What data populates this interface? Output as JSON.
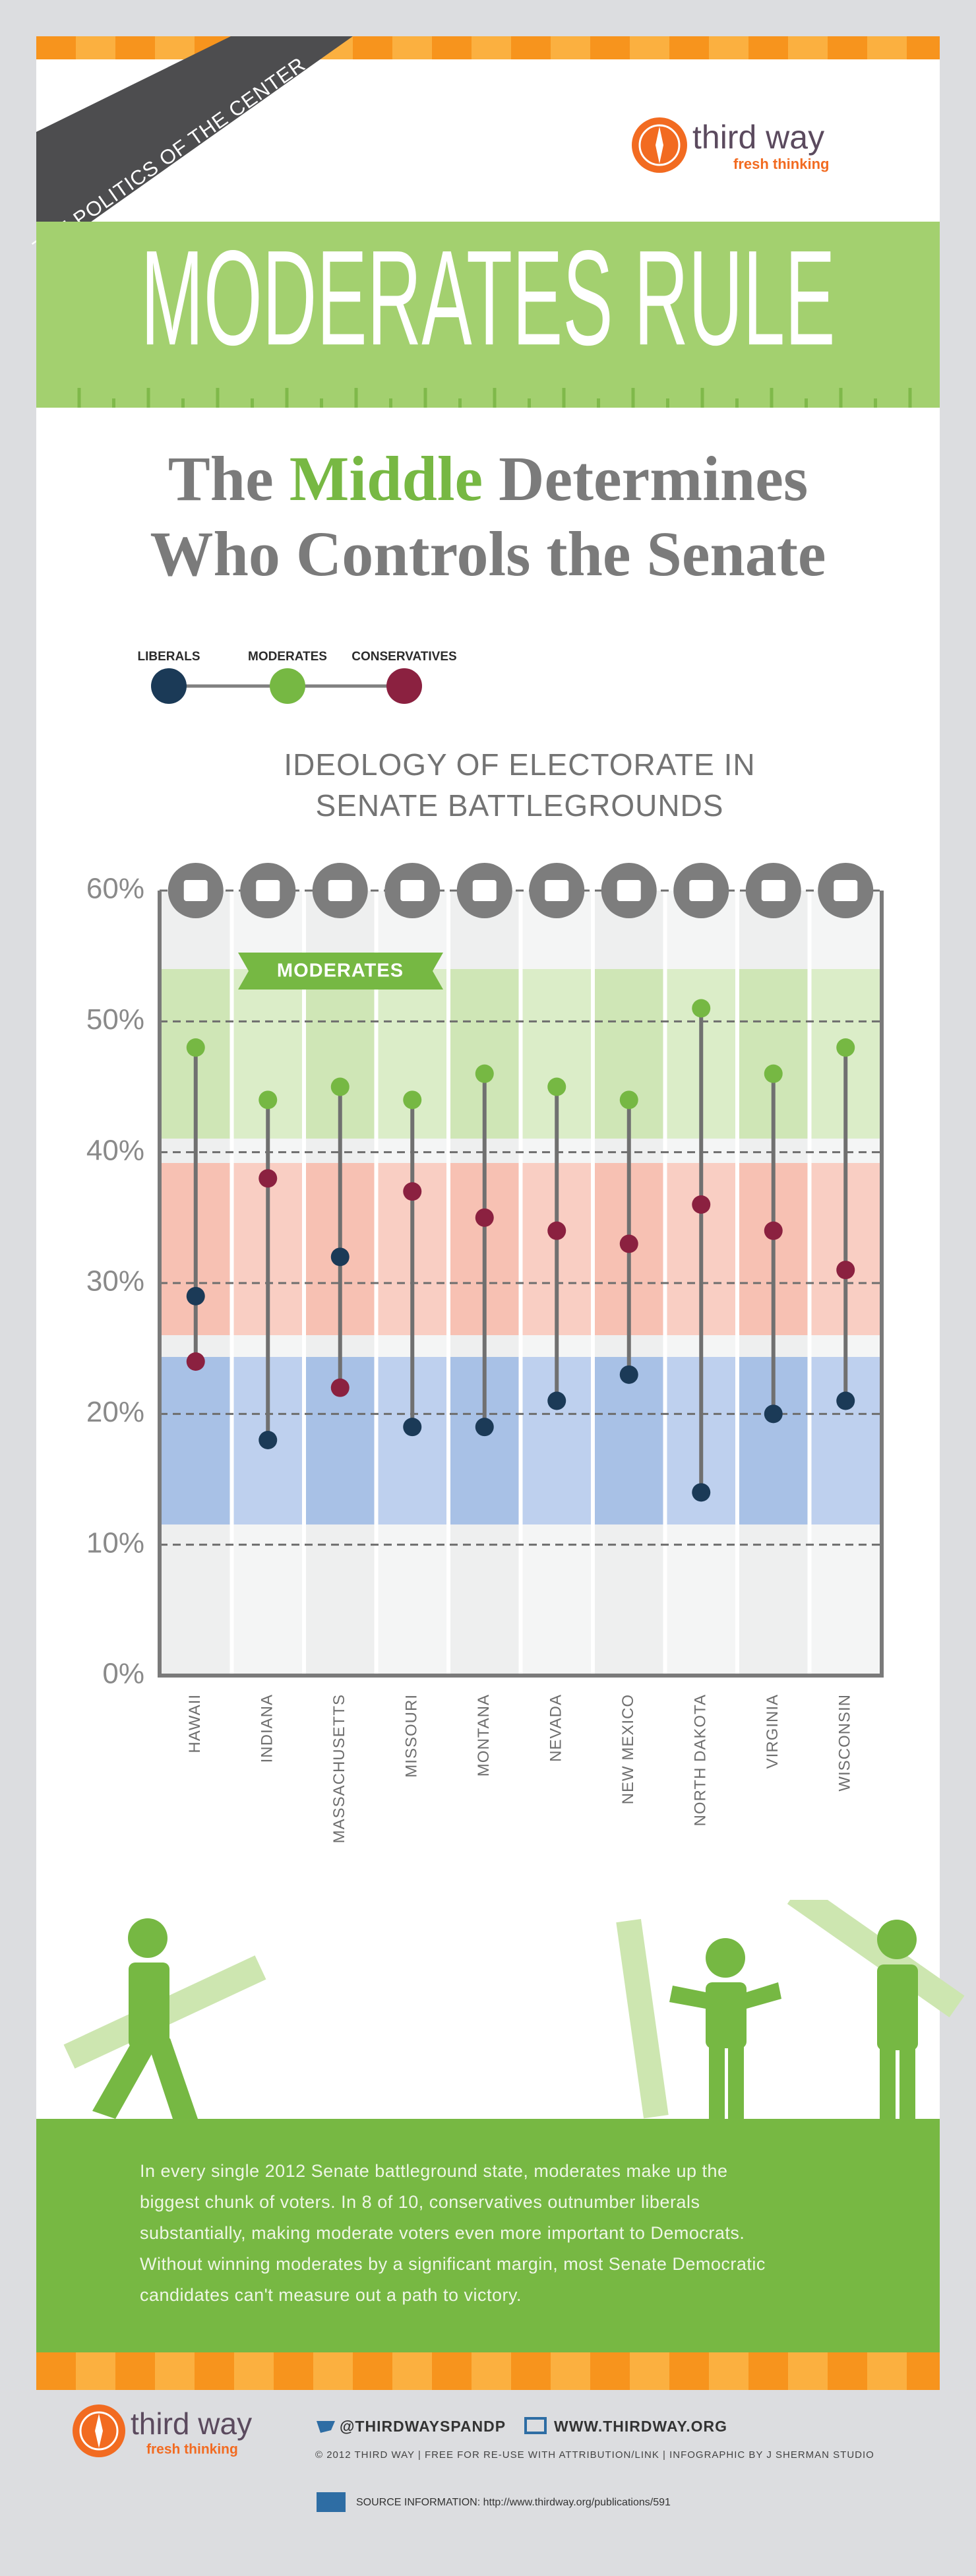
{
  "header": {
    "ribbon": "THE POLITICS OF THE CENTER",
    "logo": {
      "name": "third way",
      "tagline": "fresh thinking"
    },
    "title": "MODERATES RULE",
    "subtitle": {
      "line1_before": "The",
      "line1_highlight": "Middle",
      "line1_after": "Determines",
      "line2": "Who Controls the Senate"
    }
  },
  "chart_data": {
    "type": "dumbbell",
    "title_lines": [
      "IDEOLOGY OF ELECTORATE IN",
      "SENATE BATTLEGROUNDS"
    ],
    "band_label": "MODERATES",
    "categories": [
      "HAWAII",
      "INDIANA",
      "MASSACHUSETTS",
      "MISSOURI",
      "MONTANA",
      "NEVADA",
      "NEW MEXICO",
      "NORTH DAKOTA",
      "VIRGINIA",
      "WISCONSIN"
    ],
    "series": [
      {
        "name": "LIBERALS",
        "color": "#1b3a57",
        "values": [
          29,
          18,
          32,
          19,
          19,
          21,
          23,
          14,
          20,
          21
        ]
      },
      {
        "name": "MODERATES",
        "color": "#76b843",
        "values": [
          48,
          44,
          45,
          44,
          46,
          45,
          44,
          51,
          46,
          48
        ]
      },
      {
        "name": "CONSERVATIVES",
        "color": "#8b2140",
        "values": [
          24,
          38,
          22,
          37,
          35,
          34,
          33,
          36,
          34,
          31
        ]
      }
    ],
    "ylim": [
      0,
      60
    ],
    "yticks": [
      {
        "value": 0,
        "label": "0%"
      },
      {
        "value": 10,
        "label": "10%"
      },
      {
        "value": 20,
        "label": "20%"
      },
      {
        "value": 30,
        "label": "30%"
      },
      {
        "value": 40,
        "label": "40%"
      },
      {
        "value": 50,
        "label": "50%"
      },
      {
        "value": 60,
        "label": "60%"
      }
    ],
    "grid": true
  },
  "body": {
    "lines": [
      "In every single 2012 Senate battleground state, moderates make up the",
      "biggest chunk of voters. In 8 of 10, conservatives outnumber liberals",
      "substantially, making moderate voters even more important to Democrats.",
      "Without winning moderates by a significant margin, most Senate Democratic",
      "candidates can't measure out a path to victory."
    ]
  },
  "footer": {
    "logo": {
      "name": "third way",
      "tagline": "fresh thinking"
    },
    "twitter": "@THIRDWAYSPANDP",
    "website": "WWW.THIRDWAY.ORG",
    "credits": "© 2012 THIRD WAY | FREE FOR RE-USE WITH ATTRIBUTION/LINK | INFOGRAPHIC BY J SHERMAN STUDIO",
    "source": "SOURCE INFORMATION: http://www.thirdway.org/publications/591"
  }
}
